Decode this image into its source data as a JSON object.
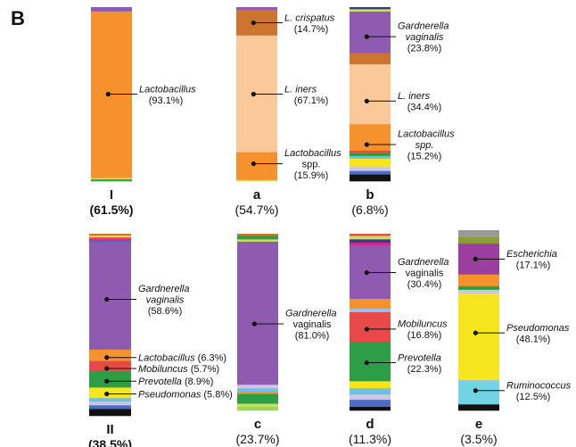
{
  "panel_label": "B",
  "chart_data": {
    "type": "bar",
    "stacked": true,
    "orientation": "vertical-100-percent",
    "grid": false,
    "legend": "none",
    "bars": [
      {
        "label": "I",
        "label_bold": true,
        "pct": "(61.5%)",
        "pct_bold": true,
        "segments": [
          {
            "taxon": "top-purple",
            "value": 2.4,
            "color": "#8e5bb0"
          },
          {
            "taxon": "Lactobacillus",
            "value": 93.1,
            "color": "#f5922e"
          },
          {
            "taxon": "minor",
            "value": 0.8,
            "color": "#c8e060"
          },
          {
            "taxon": "minor",
            "value": 0.9,
            "color": "#2e9e46"
          }
        ],
        "annotations": [
          {
            "name": "Lactobacillus",
            "italic": true,
            "pct": "(93.1%)",
            "at": 50
          }
        ]
      },
      {
        "label": "a",
        "label_bold": true,
        "pct": "(54.7%)",
        "pct_bold": false,
        "segments": [
          {
            "taxon": "top-purple",
            "value": 1.6,
            "color": "#8e5bb0"
          },
          {
            "taxon": "L. crispatus",
            "value": 14.7,
            "color": "#cc7430"
          },
          {
            "taxon": "L. iners",
            "value": 67.1,
            "color": "#fbc999"
          },
          {
            "taxon": "Lactobacillus spp.",
            "value": 15.9,
            "color": "#f5922e"
          },
          {
            "taxon": "minor",
            "value": 0.7,
            "color": "#c8e060"
          }
        ],
        "annotations": [
          {
            "name": "L. crispatus",
            "italic": true,
            "pct": "(14.7%)",
            "at": 9
          },
          {
            "name": "L. iners",
            "italic": true,
            "pct": "(67.1%)",
            "at": 50
          },
          {
            "name": "Lactobacillus",
            "italic": true,
            "name2": "spp.",
            "pct": "(15.9%)",
            "at": 90
          }
        ]
      },
      {
        "label": "b",
        "label_bold": true,
        "pct": "(6.8%)",
        "pct_bold": false,
        "segments": [
          {
            "taxon": "minor",
            "value": 1.2,
            "color": "#3a3a8c"
          },
          {
            "taxon": "minor",
            "value": 1.4,
            "color": "#c8e060"
          },
          {
            "taxon": "Gardnerella vaginalis",
            "value": 23.8,
            "color": "#8e5bb0"
          },
          {
            "taxon": "minor",
            "value": 6.5,
            "color": "#cc7430"
          },
          {
            "taxon": "L. iners",
            "value": 34.4,
            "color": "#fbc999"
          },
          {
            "taxon": "Lactobacillus spp.",
            "value": 15.2,
            "color": "#f5922e"
          },
          {
            "taxon": "minor",
            "value": 1.6,
            "color": "#e84a4a"
          },
          {
            "taxon": "minor",
            "value": 1.5,
            "color": "#2e9e46"
          },
          {
            "taxon": "minor",
            "value": 1.5,
            "color": "#6cc1e0"
          },
          {
            "taxon": "minor",
            "value": 4.5,
            "color": "#f7e51e"
          },
          {
            "taxon": "minor",
            "value": 2.6,
            "color": "#cfc6e6"
          },
          {
            "taxon": "minor",
            "value": 2.0,
            "color": "#4d6cc2"
          },
          {
            "taxon": "minor",
            "value": 3.8,
            "color": "#111111"
          }
        ],
        "annotations": [
          {
            "name": "Gardnerella",
            "italic": true,
            "name2": "vaginalis",
            "italic2": true,
            "pct": "(23.8%)",
            "at": 17
          },
          {
            "name": "L. iners",
            "italic": true,
            "pct": "(34.4%)",
            "at": 54
          },
          {
            "name": "Lactobacillus",
            "italic": true,
            "name2": "spp.",
            "italic2": true,
            "pct": "(15.2%)",
            "at": 79
          }
        ]
      },
      {
        "label": "II",
        "label_bold": true,
        "pct": "(38.5%)",
        "pct_bold": true,
        "segments": [
          {
            "taxon": "minor",
            "value": 1.0,
            "color": "#cc7430"
          },
          {
            "taxon": "minor",
            "value": 1.0,
            "color": "#c8e060"
          },
          {
            "taxon": "minor",
            "value": 1.0,
            "color": "#e84a4a"
          },
          {
            "taxon": "minor",
            "value": 1.0,
            "color": "#d12a8a"
          },
          {
            "taxon": "minor",
            "value": 1.0,
            "color": "#4d6cc2"
          },
          {
            "taxon": "Gardnerella vaginalis",
            "value": 58.6,
            "color": "#8e5bb0"
          },
          {
            "taxon": "Lactobacillus",
            "value": 6.3,
            "color": "#f5922e"
          },
          {
            "taxon": "Mobiluncus",
            "value": 5.7,
            "color": "#e84a4a"
          },
          {
            "taxon": "Prevotella",
            "value": 8.9,
            "color": "#2e9e46"
          },
          {
            "taxon": "Pseudomonas",
            "value": 5.8,
            "color": "#f7e51e"
          },
          {
            "taxon": "minor",
            "value": 2.0,
            "color": "#6cc1e0"
          },
          {
            "taxon": "minor",
            "value": 2.0,
            "color": "#cfc6e6"
          },
          {
            "taxon": "minor",
            "value": 2.0,
            "color": "#4d6cc2"
          },
          {
            "taxon": "minor",
            "value": 3.7,
            "color": "#111111"
          }
        ],
        "annotations": [
          {
            "name": "Gardnerella",
            "italic": true,
            "name2": "vaginalis",
            "italic2": true,
            "pct": "(58.6%)",
            "at": 36
          },
          {
            "name": "Lactobacillus",
            "italic": true,
            "pct": "(6.3%)",
            "inline": true,
            "at": 68
          },
          {
            "name": "Mobiluncus",
            "italic": true,
            "pct": "(5.7%)",
            "inline": true,
            "at": 74
          },
          {
            "name": "Prevotella",
            "italic": true,
            "pct": "(8.9%)",
            "inline": true,
            "at": 81
          },
          {
            "name": "Pseudomonas",
            "italic": true,
            "pct": "(5.8%)",
            "inline": true,
            "at": 88
          }
        ]
      },
      {
        "label": "c",
        "label_bold": true,
        "pct": "(23.7%)",
        "pct_bold": false,
        "segments": [
          {
            "taxon": "minor",
            "value": 1.2,
            "color": "#cc7430"
          },
          {
            "taxon": "minor",
            "value": 2.0,
            "color": "#2e9e46"
          },
          {
            "taxon": "minor",
            "value": 1.3,
            "color": "#c8e060"
          },
          {
            "taxon": "Gardnerella vaginalis",
            "value": 81.0,
            "color": "#8e5bb0"
          },
          {
            "taxon": "minor",
            "value": 2.0,
            "color": "#cfc6e6"
          },
          {
            "taxon": "minor",
            "value": 2.0,
            "color": "#6cc1e0"
          },
          {
            "taxon": "minor",
            "value": 1.2,
            "color": "#f5922e"
          },
          {
            "taxon": "minor",
            "value": 5.5,
            "color": "#2e9e46"
          },
          {
            "taxon": "minor",
            "value": 1.8,
            "color": "#c8e060"
          },
          {
            "taxon": "minor",
            "value": 2.0,
            "color": "#9ed85a"
          }
        ],
        "annotations": [
          {
            "name": "Gardnerella",
            "italic": true,
            "name2": "vaginalis",
            "italic2": false,
            "pct": "(81.0%)",
            "at": 51
          }
        ]
      },
      {
        "label": "d",
        "label_bold": true,
        "pct": "(11.3%)",
        "pct_bold": false,
        "segments": [
          {
            "taxon": "minor",
            "value": 1.2,
            "color": "#e84a4a"
          },
          {
            "taxon": "minor",
            "value": 2.0,
            "color": "#c8e060"
          },
          {
            "taxon": "minor",
            "value": 1.8,
            "color": "#3a3a8c"
          },
          {
            "taxon": "minor",
            "value": 1.5,
            "color": "#d12a8a"
          },
          {
            "taxon": "Gardnerella vaginalis",
            "value": 30.4,
            "color": "#8e5bb0"
          },
          {
            "taxon": "minor",
            "value": 5.5,
            "color": "#f5922e"
          },
          {
            "taxon": "minor",
            "value": 2.0,
            "color": "#9cc0e6"
          },
          {
            "taxon": "Mobiluncus",
            "value": 16.8,
            "color": "#e84a4a"
          },
          {
            "taxon": "Prevotella",
            "value": 22.3,
            "color": "#2e9e46"
          },
          {
            "taxon": "minor",
            "value": 4.0,
            "color": "#f7e51e"
          },
          {
            "taxon": "minor",
            "value": 3.5,
            "color": "#6cc1e0"
          },
          {
            "taxon": "minor",
            "value": 3.0,
            "color": "#cfc6e6"
          },
          {
            "taxon": "minor",
            "value": 4.0,
            "color": "#4d6cc2"
          },
          {
            "taxon": "minor",
            "value": 2.0,
            "color": "#111111"
          }
        ],
        "annotations": [
          {
            "name": "Gardnerella",
            "italic": true,
            "name2": "vaginalis",
            "italic2": false,
            "pct": "(30.4%)",
            "at": 22
          },
          {
            "name": "Mobiluncus",
            "italic": true,
            "pct": "(16.8%)",
            "at": 54
          },
          {
            "name": "Prevotella",
            "italic": true,
            "pct": "(22.3%)",
            "at": 73
          }
        ]
      },
      {
        "label": "e",
        "label_bold": true,
        "pct": "(3.5%)",
        "pct_bold": false,
        "segments": [
          {
            "taxon": "minor",
            "value": 4.0,
            "color": "#9a9a9a"
          },
          {
            "taxon": "minor",
            "value": 3.5,
            "color": "#8a9a3a"
          },
          {
            "taxon": "Escherichia",
            "value": 17.1,
            "color": "#9b3ea0"
          },
          {
            "taxon": "minor",
            "value": 6.5,
            "color": "#f5922e"
          },
          {
            "taxon": "minor",
            "value": 2.0,
            "color": "#2e9e46"
          },
          {
            "taxon": "minor",
            "value": 2.0,
            "color": "#cfc6e6"
          },
          {
            "taxon": "Pseudomonas",
            "value": 48.1,
            "color": "#f7e51e"
          },
          {
            "taxon": "minor",
            "value": 1.0,
            "color": "#9cc0e6"
          },
          {
            "taxon": "Ruminococcus",
            "value": 12.5,
            "color": "#72d4e2"
          },
          {
            "taxon": "minor",
            "value": 3.3,
            "color": "#111111"
          }
        ],
        "annotations": [
          {
            "name": "Escherichia",
            "italic": true,
            "pct": "(17.1%)",
            "at": 16
          },
          {
            "name": "Pseudomonas",
            "italic": true,
            "pct": "(48.1%)",
            "at": 57
          },
          {
            "name": "Ruminococcus",
            "italic": true,
            "pct": "(12.5%)",
            "at": 89
          }
        ]
      }
    ]
  }
}
